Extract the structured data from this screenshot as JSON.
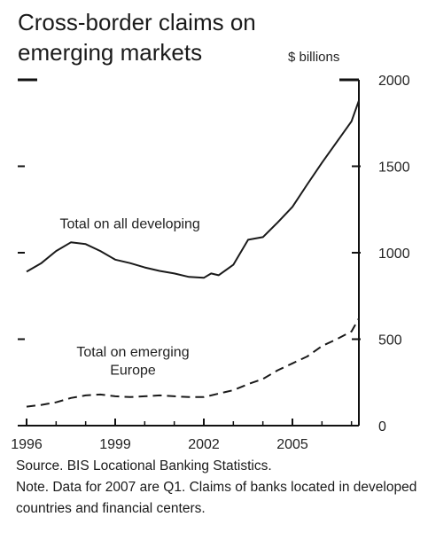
{
  "title_line1": "Cross-border claims on",
  "title_line2": "emerging markets",
  "source": "Source. BIS Locational Banking Statistics.",
  "note": "Note. Data for 2007 are Q1. Claims of banks located in developed countries and financial centers.",
  "chart_data": {
    "type": "line",
    "title": "Cross-border claims on emerging markets",
    "ylabel": "$ billions",
    "xlabel": "",
    "xlim": [
      1996,
      2007.25
    ],
    "ylim": [
      0,
      2000
    ],
    "xticks": [
      1996,
      1999,
      2002,
      2005
    ],
    "yticks": [
      0,
      500,
      1000,
      1500,
      2000
    ],
    "grid": false,
    "legend": "inline labels",
    "series": [
      {
        "name": "Total on all developing",
        "style": "solid",
        "x": [
          1996,
          1996.5,
          1997,
          1997.5,
          1998,
          1998.5,
          1999,
          1999.5,
          2000,
          2000.5,
          2001,
          2001.5,
          2002,
          2002.25,
          2002.5,
          2003,
          2003.5,
          2004,
          2004.5,
          2005,
          2005.5,
          2006,
          2006.5,
          2007,
          2007.25
        ],
        "y": [
          890,
          940,
          1010,
          1060,
          1050,
          1010,
          960,
          940,
          915,
          895,
          880,
          860,
          855,
          880,
          870,
          930,
          1075,
          1090,
          1175,
          1265,
          1395,
          1520,
          1640,
          1760,
          1880
        ]
      },
      {
        "name": "Total on emerging Europe",
        "style": "dashed",
        "x": [
          1996,
          1996.5,
          1997,
          1997.5,
          1998,
          1998.5,
          1999,
          1999.5,
          2000,
          2000.5,
          2001,
          2001.5,
          2002,
          2002.5,
          2003,
          2003.5,
          2004,
          2004.5,
          2005,
          2005.5,
          2006,
          2006.5,
          2007,
          2007.25
        ],
        "y": [
          110,
          120,
          135,
          160,
          175,
          180,
          170,
          165,
          170,
          175,
          170,
          165,
          165,
          185,
          205,
          240,
          270,
          320,
          360,
          400,
          460,
          500,
          545,
          620
        ]
      }
    ],
    "annotations": [
      {
        "text": "Total on all developing",
        "x": 1999.5,
        "y": 1140
      },
      {
        "text": "Total on emerging",
        "x": 1999.6,
        "y": 400
      },
      {
        "text": "Europe",
        "x": 1999.6,
        "y": 295
      }
    ]
  }
}
